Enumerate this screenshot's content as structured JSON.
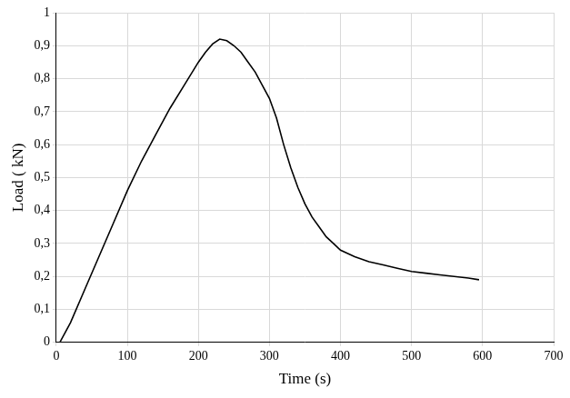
{
  "chart_data": {
    "type": "line",
    "x_label": "Time (s)",
    "y_label": "Load ( kN)",
    "x": [
      0,
      5,
      20,
      40,
      60,
      80,
      100,
      120,
      140,
      160,
      180,
      200,
      210,
      220,
      230,
      240,
      250,
      260,
      270,
      280,
      290,
      300,
      310,
      320,
      330,
      340,
      350,
      360,
      370,
      380,
      390,
      400,
      420,
      440,
      460,
      480,
      500,
      520,
      540,
      560,
      580,
      595
    ],
    "values": [
      0,
      0,
      0.06,
      0.16,
      0.26,
      0.36,
      0.46,
      0.55,
      0.63,
      0.71,
      0.78,
      0.85,
      0.88,
      0.905,
      0.92,
      0.915,
      0.9,
      0.88,
      0.85,
      0.82,
      0.78,
      0.74,
      0.68,
      0.6,
      0.53,
      0.47,
      0.42,
      0.38,
      0.35,
      0.32,
      0.3,
      0.28,
      0.26,
      0.245,
      0.235,
      0.225,
      0.215,
      0.21,
      0.205,
      0.2,
      0.195,
      0.19
    ],
    "color": "#000000",
    "xlim": [
      0,
      700
    ],
    "xticks": [
      0,
      100,
      200,
      300,
      400,
      500,
      600,
      700
    ],
    "ylim": [
      0,
      1
    ],
    "yticks": [
      0,
      {
        "value": 0.1,
        "label": "0,1"
      },
      {
        "value": 0.2,
        "label": "0,2"
      },
      {
        "value": 0.3,
        "label": "0,3"
      },
      {
        "value": 0.4,
        "label": "0,4"
      },
      {
        "value": 0.5,
        "label": "0,5"
      },
      {
        "value": 0.6,
        "label": "0,6"
      },
      {
        "value": 0.7,
        "label": "0,7"
      },
      {
        "value": 0.8,
        "label": "0,8"
      },
      {
        "value": 0.9,
        "label": "0,9"
      },
      1
    ],
    "grid": true
  }
}
